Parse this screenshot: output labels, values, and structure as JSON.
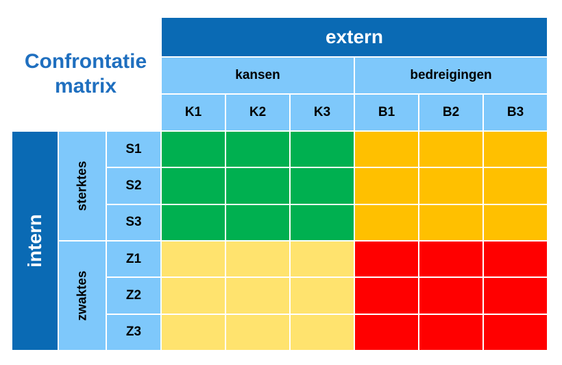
{
  "title": [
    "Confrontatie",
    "matrix"
  ],
  "external": {
    "label": "extern",
    "groups": [
      "kansen",
      "bedreigingen"
    ],
    "columns": [
      "K1",
      "K2",
      "K3",
      "B1",
      "B2",
      "B3"
    ]
  },
  "internal": {
    "label": "intern",
    "groups": [
      "sterktes",
      "zwaktes"
    ],
    "rows": [
      "S1",
      "S2",
      "S3",
      "Z1",
      "Z2",
      "Z3"
    ]
  },
  "colors": {
    "sterktes_kansen": "#00b050",
    "sterktes_bedreigingen": "#ffc000",
    "zwaktes_kansen": "#ffe36e",
    "zwaktes_bedreigingen": "#ff0000",
    "header_dark": "#0a6ab4",
    "header_light": "#7ec8fb",
    "title_color": "#1f6fbf"
  }
}
